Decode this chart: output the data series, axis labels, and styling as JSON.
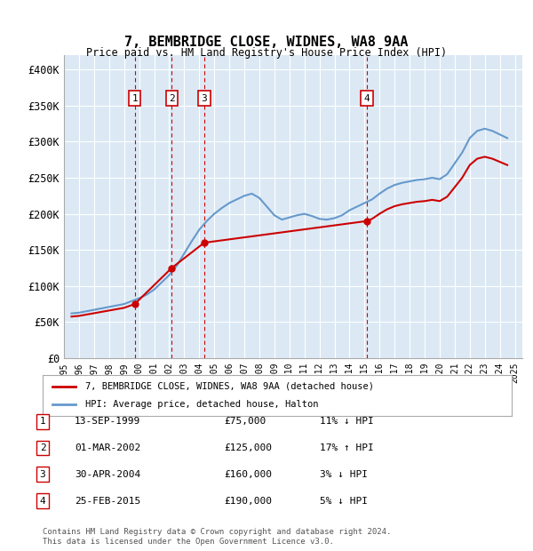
{
  "title": "7, BEMBRIDGE CLOSE, WIDNES, WA8 9AA",
  "subtitle": "Price paid vs. HM Land Registry's House Price Index (HPI)",
  "bg_color": "#dce9f5",
  "plot_bg_color": "#dce9f5",
  "ylabel": "",
  "ylim": [
    0,
    420000
  ],
  "yticks": [
    0,
    50000,
    100000,
    150000,
    200000,
    250000,
    300000,
    350000,
    400000
  ],
  "ytick_labels": [
    "£0",
    "£50K",
    "£100K",
    "£150K",
    "£200K",
    "£250K",
    "£300K",
    "£350K",
    "£400K"
  ],
  "sales": [
    {
      "label": "1",
      "date_num": 1999.71,
      "price": 75000
    },
    {
      "label": "2",
      "date_num": 2002.17,
      "price": 125000
    },
    {
      "label": "3",
      "date_num": 2004.33,
      "price": 160000
    },
    {
      "label": "4",
      "date_num": 2015.15,
      "price": 190000
    }
  ],
  "sale_color": "#cc0000",
  "hpi_color": "#6699cc",
  "legend_entries": [
    "7, BEMBRIDGE CLOSE, WIDNES, WA8 9AA (detached house)",
    "HPI: Average price, detached house, Halton"
  ],
  "table_rows": [
    {
      "num": "1",
      "date": "13-SEP-1999",
      "price": "£75,000",
      "hpi": "11% ↓ HPI"
    },
    {
      "num": "2",
      "date": "01-MAR-2002",
      "price": "£125,000",
      "hpi": "17% ↑ HPI"
    },
    {
      "num": "3",
      "date": "30-APR-2004",
      "price": "£160,000",
      "hpi": "3% ↓ HPI"
    },
    {
      "num": "4",
      "date": "25-FEB-2015",
      "price": "£190,000",
      "hpi": "5% ↓ HPI"
    }
  ],
  "footnote": "Contains HM Land Registry data © Crown copyright and database right 2024.\nThis data is licensed under the Open Government Licence v3.0.",
  "xmin": 1995.0,
  "xmax": 2025.5,
  "xticks": [
    1995,
    1996,
    1997,
    1998,
    1999,
    2000,
    2001,
    2002,
    2003,
    2004,
    2005,
    2006,
    2007,
    2008,
    2009,
    2010,
    2011,
    2012,
    2013,
    2014,
    2015,
    2016,
    2017,
    2018,
    2019,
    2020,
    2021,
    2022,
    2023,
    2024,
    2025
  ]
}
